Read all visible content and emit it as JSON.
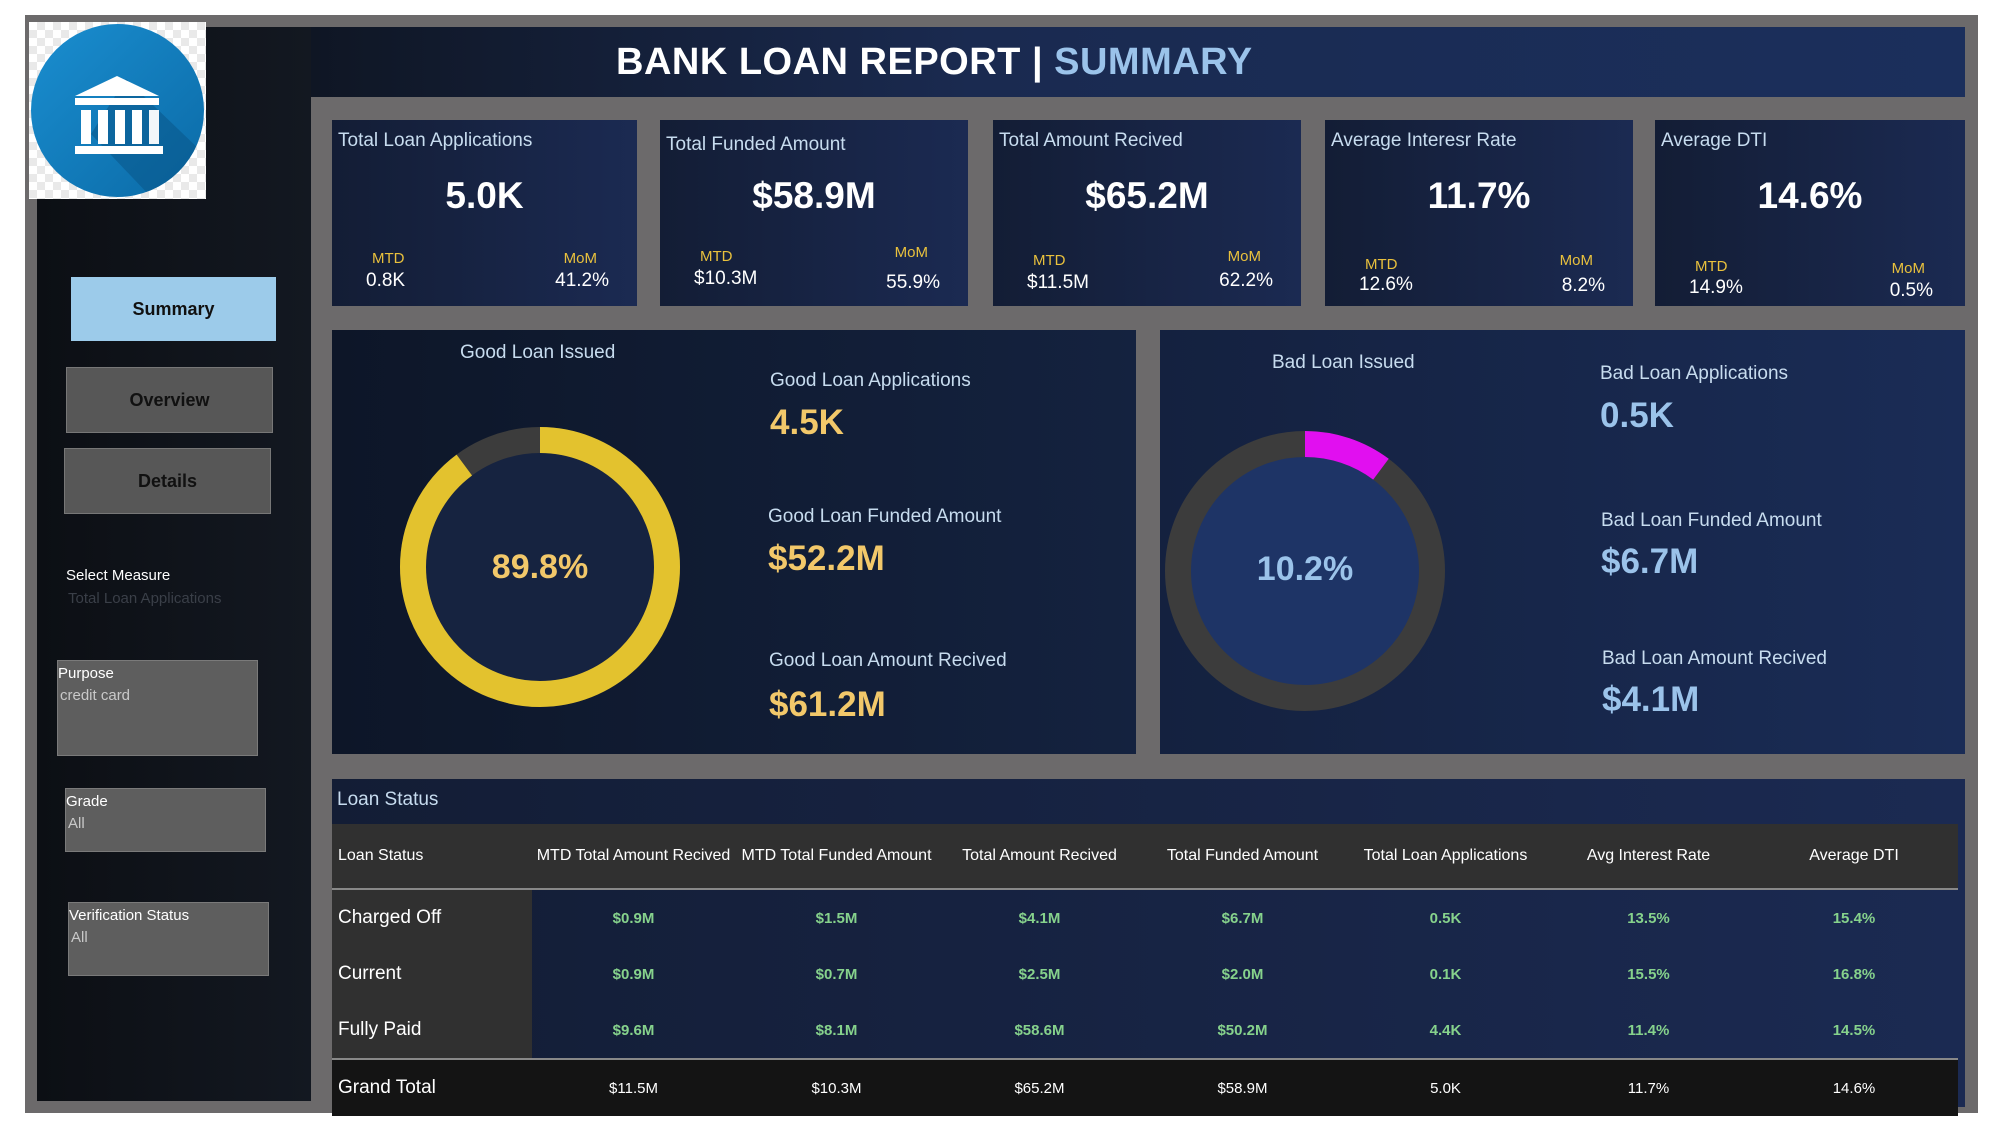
{
  "header": {
    "title_main": "BANK LOAN REPORT | ",
    "title_sub": "SUMMARY"
  },
  "colors": {
    "accent_gold": "#e3c22e",
    "bad_magenta": "#e10ff0",
    "good_text": "#f2c86a",
    "bad_text": "#9bc3ea",
    "table_values": "#86d28c"
  },
  "nav": {
    "summary": "Summary",
    "overview": "Overview",
    "details": "Details"
  },
  "filters": {
    "select_measure_label": "Select Measure",
    "select_measure_value": "Total Loan Applications",
    "purpose_label": "Purpose",
    "purpose_value": "credit card",
    "grade_label": "Grade",
    "grade_value": "All",
    "verification_label": "Verification Status",
    "verification_value": "All"
  },
  "kpis": [
    {
      "label": "Total Loan Applications",
      "value": "5.0K",
      "mtd_label": "MTD",
      "mtd": "0.8K",
      "mom_label": "MoM",
      "mom": "41.2%"
    },
    {
      "label": "Total Funded Amount",
      "value": "$58.9M",
      "mtd_label": "MTD",
      "mtd": "$10.3M",
      "mom_label": "MoM",
      "mom": "55.9%"
    },
    {
      "label": "Total Amount Recived",
      "value": "$65.2M",
      "mtd_label": "MTD",
      "mtd": "$11.5M",
      "mom_label": "MoM",
      "mom": "62.2%"
    },
    {
      "label": "Average Interesr Rate",
      "value": "11.7%",
      "mtd_label": "MTD",
      "mtd": "12.6%",
      "mom_label": "MoM",
      "mom": "8.2%"
    },
    {
      "label": "Average DTI",
      "value": "14.6%",
      "mtd_label": "MTD",
      "mtd": "14.9%",
      "mom_label": "MoM",
      "mom": "0.5%"
    }
  ],
  "good_loan": {
    "title": "Good Loan Issued",
    "percent_label": "89.8%",
    "percent": 0.898,
    "apps_label": "Good Loan Applications",
    "apps": "4.5K",
    "funded_label": "Good Loan Funded Amount",
    "funded": "$52.2M",
    "received_label": "Good Loan Amount Recived",
    "received": "$61.2M"
  },
  "bad_loan": {
    "title": "Bad Loan Issued",
    "percent_label": "10.2%",
    "percent": 0.102,
    "apps_label": "Bad Loan Applications",
    "apps": "0.5K",
    "funded_label": "Bad Loan Funded Amount",
    "funded": "$6.7M",
    "received_label": "Bad Loan Amount Recived",
    "received": "$4.1M"
  },
  "loan_status": {
    "title": "Loan Status",
    "columns": [
      "Loan Status",
      "MTD Total Amount Recived",
      "MTD Total Funded Amount",
      "Total Amount Recived",
      "Total Funded Amount",
      "Total Loan Applications",
      "Avg Interest Rate",
      "Average DTI"
    ],
    "rows": [
      [
        "Charged Off",
        "$0.9M",
        "$1.5M",
        "$4.1M",
        "$6.7M",
        "0.5K",
        "13.5%",
        "15.4%"
      ],
      [
        "Current",
        "$0.9M",
        "$0.7M",
        "$2.5M",
        "$2.0M",
        "0.1K",
        "15.5%",
        "16.8%"
      ],
      [
        "Fully Paid",
        "$9.6M",
        "$8.1M",
        "$58.6M",
        "$50.2M",
        "4.4K",
        "11.4%",
        "14.5%"
      ]
    ],
    "total": [
      "Grand Total",
      "$11.5M",
      "$10.3M",
      "$65.2M",
      "$58.9M",
      "5.0K",
      "11.7%",
      "14.6%"
    ]
  }
}
